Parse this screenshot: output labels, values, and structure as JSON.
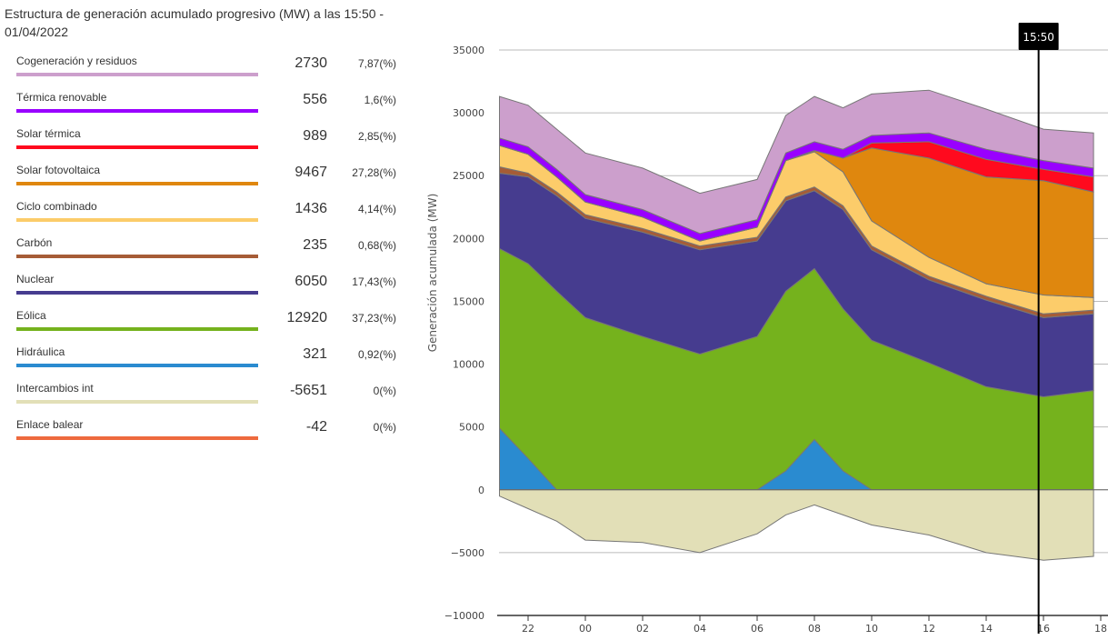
{
  "title": "Estructura de generación acumulado progresivo (MW) a las 15:50 - 01/04/2022",
  "legend": [
    {
      "name": "Cogeneración y residuos",
      "value": "2730",
      "pct": "7,87(%)",
      "color": "#cc9fcc"
    },
    {
      "name": "Térmica renovable",
      "value": "556",
      "pct": "1,6(%)",
      "color": "#9900ff"
    },
    {
      "name": "Solar térmica",
      "value": "989",
      "pct": "2,85(%)",
      "color": "#ff0a1e"
    },
    {
      "name": "Solar fotovoltaica",
      "value": "9467",
      "pct": "27,28(%)",
      "color": "#df870e"
    },
    {
      "name": "Ciclo combinado",
      "value": "1436",
      "pct": "4,14(%)",
      "color": "#fccc6a"
    },
    {
      "name": "Carbón",
      "value": "235",
      "pct": "0,68(%)",
      "color": "#a65c36"
    },
    {
      "name": "Nuclear",
      "value": "6050",
      "pct": "17,43(%)",
      "color": "#463c8f"
    },
    {
      "name": "Eólica",
      "value": "12920",
      "pct": "37,23(%)",
      "color": "#75b21d"
    },
    {
      "name": "Hidráulica",
      "value": "321",
      "pct": "0,92(%)",
      "color": "#2a8bd0"
    },
    {
      "name": "Intercambios int",
      "value": "-5651",
      "pct": "0(%)",
      "color": "#e2dfb7"
    },
    {
      "name": "Enlace balear",
      "value": "-42",
      "pct": "0(%)",
      "color": "#ee6a3e"
    }
  ],
  "chart_data": {
    "type": "area",
    "stacked": true,
    "title": "Estructura de generación acumulado progresivo (MW) a las 15:50 - 01/04/2022",
    "xlabel": "",
    "ylabel": "Generación acumulada (MW)",
    "ylim": [
      -10000,
      35000
    ],
    "yticks": [
      35000,
      30000,
      25000,
      20000,
      15000,
      10000,
      5000,
      0,
      -5000,
      -10000
    ],
    "ytick_labels": [
      "35000",
      "30000",
      "25000",
      "20000",
      "15000",
      "10000",
      "5000",
      "0",
      "−5000",
      "−10000"
    ],
    "xlim_hours": [
      20.75,
      42.2
    ],
    "xticks_hours": [
      22,
      24,
      26,
      28,
      30,
      32,
      34,
      36,
      38,
      40,
      42
    ],
    "xtick_labels": [
      "22",
      "00",
      "02",
      "04",
      "06",
      "08",
      "10",
      "12",
      "14",
      "16",
      "18"
    ],
    "grid": true,
    "cursor": {
      "label": "15:50",
      "hour": 39.83
    },
    "x_hours": [
      21,
      22,
      23,
      24,
      26,
      28,
      30,
      31,
      32,
      33,
      34,
      36,
      38,
      40,
      41.75
    ],
    "series": [
      {
        "name": "Hidráulica",
        "color": "#2a8bd0",
        "values": [
          4900,
          2500,
          0,
          0,
          0,
          0,
          0,
          1500,
          4000,
          1500,
          0,
          0,
          0,
          0,
          0
        ]
      },
      {
        "name": "Eólica",
        "color": "#75b21d",
        "values": [
          14300,
          15500,
          15800,
          13700,
          12200,
          10800,
          12200,
          14300,
          13600,
          12900,
          11900,
          10100,
          8200,
          7400,
          7900
        ]
      },
      {
        "name": "Nuclear",
        "color": "#463c8f",
        "values": [
          6000,
          6900,
          7600,
          7900,
          8300,
          8300,
          7600,
          7200,
          6200,
          7900,
          7200,
          6600,
          6900,
          6300,
          6100
        ]
      },
      {
        "name": "Carbón",
        "color": "#a65c36",
        "values": [
          500,
          300,
          300,
          300,
          300,
          300,
          300,
          300,
          300,
          300,
          300,
          300,
          300,
          300,
          300
        ]
      },
      {
        "name": "Ciclo combinado",
        "color": "#fccc6a",
        "values": [
          1700,
          1500,
          1200,
          1000,
          900,
          400,
          800,
          2900,
          2800,
          2700,
          2000,
          1500,
          1000,
          1500,
          1000
        ]
      },
      {
        "name": "Solar fotovoltaica",
        "color": "#df870e",
        "values": [
          0,
          0,
          0,
          0,
          0,
          0,
          0,
          0,
          100,
          1100,
          5800,
          7900,
          8500,
          9100,
          8400
        ]
      },
      {
        "name": "Solar térmica",
        "color": "#ff0a1e",
        "values": [
          0,
          0,
          0,
          0,
          0,
          0,
          0,
          0,
          0,
          0,
          400,
          1300,
          1400,
          900,
          1200
        ]
      },
      {
        "name": "Térmica renovable",
        "color": "#9900ff",
        "values": [
          600,
          600,
          600,
          600,
          600,
          600,
          600,
          600,
          700,
          700,
          600,
          700,
          800,
          700,
          700
        ]
      },
      {
        "name": "Cogeneración y residuos",
        "color": "#cc9fcc",
        "values": [
          3300,
          3300,
          3200,
          3300,
          3300,
          3200,
          3200,
          3000,
          3600,
          3300,
          3300,
          3400,
          3200,
          2500,
          2800
        ]
      },
      {
        "name": "Intercambios int",
        "color": "#e2dfb7",
        "values": [
          -500,
          -1500,
          -2500,
          -4000,
          -4200,
          -5000,
          -3500,
          -2000,
          -1200,
          -2000,
          -2800,
          -3600,
          -5000,
          -5600,
          -5300
        ]
      }
    ]
  }
}
